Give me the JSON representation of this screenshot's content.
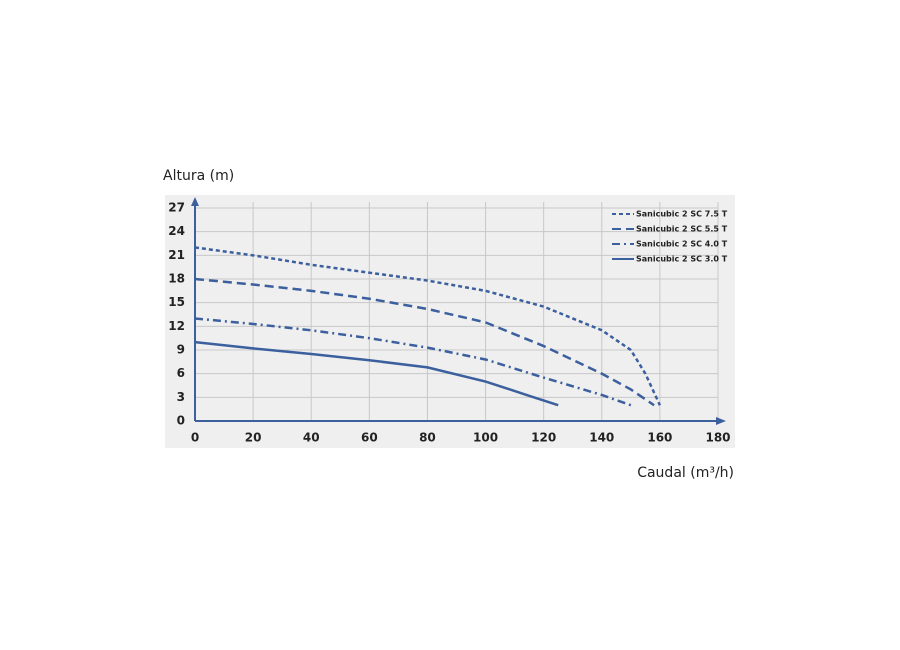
{
  "chart_data": {
    "type": "line",
    "ylabel": "Altura (m)",
    "xlabel": "Caudal (m³/h)",
    "xlim": [
      0,
      180
    ],
    "xticks": [
      0,
      20,
      40,
      60,
      80,
      100,
      120,
      140,
      160,
      180
    ],
    "ylim": [
      0,
      27
    ],
    "yticks": [
      0,
      3,
      6,
      9,
      12,
      15,
      18,
      21,
      24,
      27
    ],
    "grid": true,
    "legend": "top-right",
    "series": [
      {
        "name": "Sanicubic 2 SC 7.5 T",
        "color": "#3c5f9e",
        "dash": "short-dash",
        "x": [
          0,
          20,
          40,
          60,
          80,
          100,
          120,
          140,
          150,
          155,
          160
        ],
        "values": [
          22,
          21,
          19.8,
          18.8,
          17.8,
          16.5,
          14.5,
          11.5,
          9,
          6,
          2
        ]
      },
      {
        "name": "Sanicubic 2 SC 5.5 T",
        "color": "#3c5f9e",
        "dash": "long-dash",
        "x": [
          0,
          20,
          40,
          60,
          80,
          100,
          120,
          140,
          150,
          158
        ],
        "values": [
          18,
          17.3,
          16.5,
          15.5,
          14.2,
          12.5,
          9.5,
          6,
          4,
          2
        ]
      },
      {
        "name": "Sanicubic 2 SC 4.0 T",
        "color": "#3c5f9e",
        "dash": "dash-dot",
        "x": [
          0,
          20,
          40,
          60,
          80,
          100,
          120,
          140,
          150
        ],
        "values": [
          13,
          12.3,
          11.5,
          10.5,
          9.3,
          7.8,
          5.5,
          3.3,
          2
        ]
      },
      {
        "name": "Sanicubic 2 SC 3.0 T",
        "color": "#3c5f9e",
        "dash": "solid",
        "x": [
          0,
          20,
          40,
          60,
          80,
          100,
          115,
          125
        ],
        "values": [
          10,
          9.2,
          8.5,
          7.7,
          6.8,
          5,
          3.2,
          2
        ]
      }
    ]
  }
}
